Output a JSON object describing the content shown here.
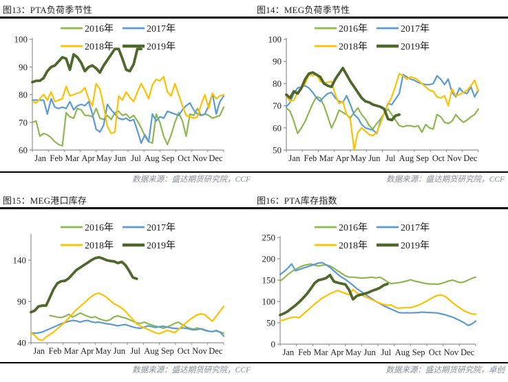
{
  "page": {
    "background": "#ffffff",
    "text_color": "#1f1f1f",
    "axis_color": "#8f8f8f",
    "rule_color": "#000000",
    "source_color": "#868d96"
  },
  "chart_data": [
    {
      "type": "line",
      "title": "图13：PTA负荷季节性",
      "source": "数据来源：盛达期货研究院，CCF",
      "x_categories": [
        "Jan",
        "Feb",
        "Mar",
        "Apr",
        "May",
        "Jun",
        "Jul",
        "Aug",
        "Sep",
        "Oct",
        "Nov",
        "Dec"
      ],
      "ylim": [
        60,
        100
      ],
      "y_ticks": [
        60,
        70,
        80,
        90,
        100
      ],
      "weeks_total": 52,
      "legend_position": "top-center",
      "series": [
        {
          "name": "2016年",
          "color": "#8CB94F",
          "width": 2.2,
          "start_week": 0,
          "values": [
            70,
            70.5,
            65,
            66,
            65.5,
            64.5,
            63,
            62,
            61.5,
            73.5,
            72,
            71.5,
            75,
            74.5,
            72.5,
            72.5,
            72,
            75,
            71.5,
            71,
            72.5,
            71,
            73.5,
            74,
            72.5,
            73,
            71.5,
            72.5,
            70.5,
            68,
            65,
            63,
            62.5,
            73,
            70,
            65,
            62,
            65.5,
            70,
            73.5,
            70.5,
            65,
            73,
            72.5,
            75,
            72.5,
            73,
            72.5,
            71.5,
            72,
            72.5,
            75.5
          ]
        },
        {
          "name": "2017年",
          "color": "#5B9BD5",
          "width": 2.2,
          "start_week": 0,
          "values": [
            78,
            78,
            78,
            78,
            73,
            78.5,
            75.5,
            75,
            75.5,
            75,
            77.5,
            74.5,
            76,
            76.5,
            76,
            77.5,
            73,
            67.5,
            66.5,
            69,
            76.5,
            74.5,
            73,
            71.5,
            71,
            71.5,
            70.5,
            71,
            67,
            62.5,
            65.5,
            63,
            73,
            70.5,
            72,
            71.5,
            74,
            73.5,
            73,
            72.5,
            74.5,
            76,
            77,
            74.5,
            73,
            72.5,
            73,
            76,
            80.5,
            73,
            77.5,
            79.5
          ]
        },
        {
          "name": "2018年",
          "color": "#FFC000",
          "width": 2.2,
          "start_week": 0,
          "values": [
            77.5,
            77,
            78.5,
            80,
            78,
            81,
            77.5,
            78,
            78.5,
            83,
            79.5,
            80,
            80.5,
            81,
            82.5,
            78.5,
            76,
            84,
            82,
            76,
            68.5,
            66,
            66.5,
            79.5,
            78,
            81,
            79,
            77.5,
            81,
            84,
            81.5,
            78.5,
            83.5,
            85.5,
            85,
            86.5,
            81,
            79.5,
            84,
            80,
            76,
            72.5,
            72,
            71.5,
            72,
            76.5,
            80,
            75,
            80.5,
            78.5,
            79.5,
            80
          ]
        },
        {
          "name": "2019年",
          "color": "#4E682B",
          "width": 3.8,
          "start_week": 0,
          "values": [
            84.5,
            85,
            85,
            86,
            88.5,
            90,
            90.5,
            92,
            93.5,
            93,
            89,
            94.5,
            93.5,
            91.5,
            88.5,
            90,
            90.5,
            89.5,
            88,
            90.5,
            92.5,
            94.5,
            96.5,
            96.5,
            93,
            89,
            88.5,
            91,
            96.5,
            96.5
          ]
        }
      ]
    },
    {
      "type": "line",
      "title": "图14：MEG负荷季节性",
      "source": "数据来源：盛达期货研究院，CCF",
      "x_categories": [
        "Jan",
        "Feb",
        "Mar",
        "Apr",
        "May",
        "Jun",
        "Jul",
        "Aug",
        "Sep",
        "Oct",
        "Nov",
        "Dec"
      ],
      "ylim": [
        50,
        100
      ],
      "y_ticks": [
        50,
        60,
        70,
        80,
        90,
        100
      ],
      "weeks_total": 52,
      "legend_position": "top-center",
      "series": [
        {
          "name": "2016年",
          "color": "#8CB94F",
          "width": 2.2,
          "start_week": 0,
          "values": [
            69,
            67.5,
            63,
            57.5,
            60,
            63,
            67,
            71,
            74,
            73.5,
            70,
            65,
            60,
            63.5,
            68,
            67,
            66,
            64.5,
            67,
            69,
            66,
            64,
            61,
            59.5,
            62,
            64,
            66.5,
            68.5,
            66,
            63.5,
            61,
            60.5,
            61,
            61,
            60.5,
            61,
            58,
            61.5,
            60,
            59.5,
            66,
            65,
            62.5,
            62,
            63,
            66,
            64,
            62.5,
            63.5,
            65,
            66,
            68.5
          ]
        },
        {
          "name": "2017年",
          "color": "#5B9BD5",
          "width": 2.2,
          "start_week": 0,
          "values": [
            69.5,
            71.5,
            75.5,
            78,
            78.5,
            79,
            78,
            76,
            73.5,
            72,
            74,
            75.5,
            76,
            73.5,
            72,
            71.5,
            74.5,
            70.5,
            66,
            64.5,
            61.5,
            60,
            59.5,
            59,
            57.5,
            63,
            66.5,
            71,
            70.5,
            73,
            75.5,
            84,
            83,
            82,
            81.5,
            80.5,
            80,
            79.5,
            79.5,
            80,
            83.5,
            82,
            79.5,
            82,
            76,
            74,
            78,
            76,
            75.5,
            78.5,
            74,
            77
          ]
        },
        {
          "name": "2018年",
          "color": "#FFC000",
          "width": 2.2,
          "start_week": 0,
          "values": [
            74.5,
            72,
            72.5,
            76,
            78,
            80,
            84,
            83.5,
            84.5,
            81,
            80.5,
            80.5,
            81,
            75,
            71,
            72,
            66,
            64,
            50,
            58,
            60,
            58.5,
            57,
            56.5,
            58,
            62,
            67,
            70.5,
            74,
            79,
            84.5,
            83.5,
            82,
            83,
            82.5,
            81.5,
            80,
            78.5,
            77,
            76.5,
            74,
            73.5,
            74.5,
            70,
            77.5,
            74.5,
            75,
            76,
            77,
            79,
            81.5,
            76.5
          ]
        },
        {
          "name": "2019年",
          "color": "#4E682B",
          "width": 3.8,
          "start_week": 0,
          "values": [
            75,
            73.5,
            76.5,
            75.5,
            78,
            82,
            84.5,
            85,
            84,
            83,
            80,
            79,
            78.5,
            82,
            84.5,
            87,
            84,
            81,
            78.5,
            76,
            73.5,
            72,
            71.5,
            70.5,
            70,
            69.5,
            68.5,
            64,
            63.5,
            65.5,
            66
          ]
        }
      ]
    },
    {
      "type": "line",
      "title": "图15：MEG港口库存",
      "source": "数据来源：盛达期货研究院，CCF",
      "x_categories": [
        "Jan",
        "Feb",
        "Mar",
        "Apr",
        "May",
        "Jun",
        "Jul",
        "Aug",
        "Sep",
        "Oct",
        "Nov",
        "Dec"
      ],
      "ylim": [
        40,
        150
      ],
      "y_ticks": [
        40,
        90,
        140
      ],
      "weeks_total": 52,
      "legend_position": "top-center",
      "series": [
        {
          "name": "2016年",
          "color": "#8CB94F",
          "width": 2.2,
          "start_week": 5,
          "values": [
            73,
            72,
            71,
            70.5,
            72,
            74.5,
            71,
            73.5,
            76,
            74,
            72,
            70.5,
            71.5,
            69,
            67.5,
            66.5,
            68,
            71.5,
            72.5,
            71,
            70,
            68,
            66,
            64,
            63.5,
            65,
            63,
            61.5,
            60,
            59,
            57.5,
            59,
            61,
            63.5,
            65,
            62,
            59.5,
            57.5,
            56.5,
            58,
            56.5,
            55,
            54,
            53.5,
            55,
            53,
            51.5
          ]
        },
        {
          "name": "2017年",
          "color": "#5B9BD5",
          "width": 2.2,
          "start_week": 0,
          "values": [
            52,
            51.5,
            52,
            53,
            55,
            57,
            59,
            61,
            63,
            64.5,
            66,
            67,
            66.5,
            65,
            66.5,
            67,
            65.5,
            64.5,
            65,
            64,
            63,
            62.5,
            61.5,
            60.5,
            61.5,
            62,
            60.5,
            59,
            58,
            57.5,
            59,
            60.5,
            59.5,
            58.5,
            59.5,
            60,
            59,
            58,
            57.5,
            57,
            58,
            57.5,
            56.5,
            55.5,
            56,
            57,
            55.5,
            54,
            53.5,
            54.5,
            53,
            48
          ]
        },
        {
          "name": "2018年",
          "color": "#FFC000",
          "width": 2.2,
          "start_week": 0,
          "values": [
            52,
            49,
            44,
            43,
            47,
            50,
            53,
            57,
            61,
            65,
            70,
            75,
            80,
            84,
            88,
            92,
            96,
            99,
            100,
            98,
            95,
            91,
            87,
            85,
            82,
            78,
            73,
            68,
            63,
            60,
            58,
            56,
            54,
            52,
            51,
            53,
            55,
            54,
            52,
            56,
            60,
            64,
            68,
            71,
            74,
            75,
            74,
            70,
            66,
            72,
            78,
            84
          ]
        },
        {
          "name": "2019年",
          "color": "#4E682B",
          "width": 3.8,
          "start_week": 0,
          "values": [
            77,
            79,
            84,
            85,
            85,
            95,
            105,
            112,
            114.5,
            115,
            118,
            123,
            128,
            131,
            134,
            137,
            140,
            142.5,
            143.5,
            142,
            140,
            139,
            138.5,
            136.5,
            138,
            134,
            127,
            119,
            117.5
          ]
        }
      ]
    },
    {
      "type": "line",
      "title": "图16：PTA库存指数",
      "source": "数据来源：盛达期货研究院，卓创",
      "x_categories": [
        "Jan",
        "Feb",
        "Mar",
        "Apr",
        "May",
        "Jun",
        "Jul",
        "Aug",
        "Sep",
        "Oct",
        "Nov",
        "Dec"
      ],
      "ylim": [
        0,
        250
      ],
      "y_ticks": [
        0,
        50,
        100,
        150,
        200,
        250
      ],
      "weeks_total": 52,
      "legend_position": "top-center",
      "series": [
        {
          "name": "2016年",
          "color": "#8CB94F",
          "width": 2.2,
          "start_week": 0,
          "values": [
            148,
            155,
            163,
            170,
            175,
            180,
            184,
            186,
            188,
            185,
            183,
            185,
            186,
            183,
            178,
            172,
            166,
            160,
            157,
            157,
            156,
            155,
            155,
            156,
            157,
            155,
            157,
            152,
            146,
            142,
            143,
            144,
            146,
            148,
            151,
            148,
            146,
            144,
            142,
            141,
            141,
            140.5,
            142,
            145,
            148,
            150,
            147,
            144,
            146,
            150,
            154,
            157
          ]
        },
        {
          "name": "2017年",
          "color": "#5B9BD5",
          "width": 2.2,
          "start_week": 0,
          "values": [
            163,
            170,
            178,
            188,
            172,
            175,
            178,
            181,
            184,
            187,
            190,
            191,
            186,
            180,
            172,
            164,
            157,
            152,
            145,
            138,
            130,
            124,
            118,
            112,
            106,
            100,
            95,
            90,
            86,
            82,
            78,
            74,
            73,
            73.5,
            73,
            73.5,
            74,
            75,
            74.5,
            74,
            73.5,
            73,
            71,
            69,
            66,
            63,
            59,
            55,
            50,
            44,
            47,
            54
          ]
        },
        {
          "name": "2018年",
          "color": "#FFC000",
          "width": 2.2,
          "start_week": 0,
          "values": [
            55,
            57,
            60,
            62.5,
            63.5,
            62,
            70,
            78,
            86,
            94,
            101,
            108,
            113,
            118,
            122,
            125.5,
            122,
            119,
            116,
            128,
            120,
            116,
            112,
            108,
            104,
            100,
            96,
            93,
            91,
            92,
            86,
            84,
            85,
            86,
            85.5,
            88,
            91,
            95,
            100,
            105,
            110,
            114,
            115.5,
            112,
            105,
            97,
            90,
            84,
            78,
            74,
            71,
            70
          ]
        },
        {
          "name": "2019年",
          "color": "#4E682B",
          "width": 3.8,
          "start_week": 0,
          "values": [
            68,
            72,
            77,
            84,
            91,
            99,
            108,
            118,
            130,
            143,
            150,
            152,
            155,
            162,
            147,
            144,
            142,
            140,
            127,
            105,
            113,
            116,
            118,
            121,
            125,
            128,
            132,
            138,
            141
          ]
        }
      ]
    }
  ]
}
